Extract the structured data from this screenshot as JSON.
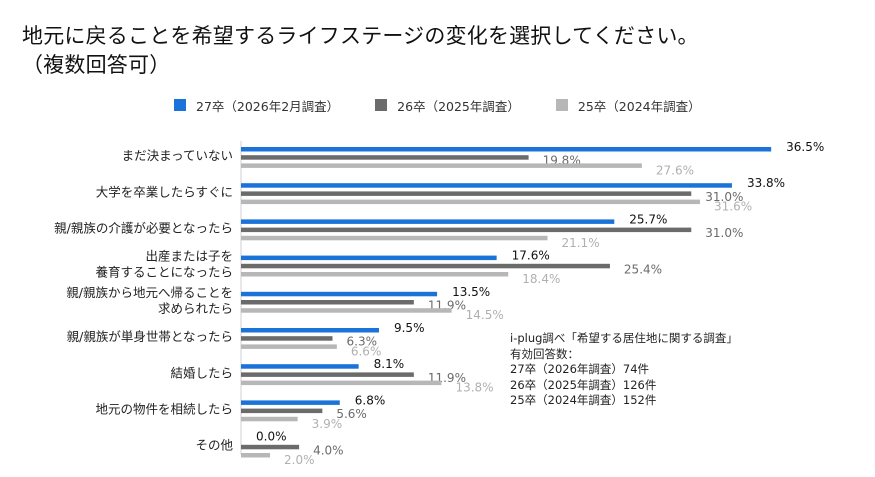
{
  "title": {
    "line1": "地元に戻ることを希望するライフステージの変化を選択してください。",
    "line2": "（複数回答可）"
  },
  "legend": [
    {
      "label": "27卒（2026年2月調査）",
      "color": "#1a73d9"
    },
    {
      "label": "26卒（2025年調査）",
      "color": "#6b6b6b"
    },
    {
      "label": "25卒（2024年調査）",
      "color": "#b7b7b7"
    }
  ],
  "note": {
    "lines": [
      "i-plug調べ「希望する居住地に関する調査」",
      "有効回答数：",
      "27卒（2026年調査）74件",
      "26卒（2025年調査）126件",
      "25卒（2024年調査）152件"
    ]
  },
  "chart_data": {
    "type": "bar",
    "orientation": "horizontal",
    "categories": [
      "まだ決まっていない",
      "大学を卒業したらすぐに",
      "親/親族の介護が必要となったら",
      "出産または子を\n養育することになったら",
      "親/親族から地元へ帰ることを\n求められたら",
      "親/親族が単身世帯となったら",
      "結婚したら",
      "地元の物件を相続したら",
      "その他"
    ],
    "series": [
      {
        "name": "27卒（2026年2月調査）",
        "color": "#1a73d9",
        "label_color": "#111111",
        "values": [
          36.5,
          33.8,
          25.7,
          17.6,
          13.5,
          9.5,
          8.1,
          6.8,
          0.0
        ]
      },
      {
        "name": "26卒（2025年調査）",
        "color": "#6b6b6b",
        "label_color": "#6b6b6b",
        "values": [
          19.8,
          31.0,
          31.0,
          25.4,
          11.9,
          6.3,
          11.9,
          5.6,
          4.0
        ]
      },
      {
        "name": "25卒（2024年調査）",
        "color": "#b7b7b7",
        "label_color": "#b0b0b0",
        "values": [
          27.6,
          31.6,
          21.1,
          18.4,
          14.5,
          6.6,
          13.8,
          3.9,
          2.0
        ]
      }
    ],
    "value_suffix": "%",
    "xlim": [
      0,
      40
    ],
    "grid": false,
    "legend_position": "top"
  }
}
